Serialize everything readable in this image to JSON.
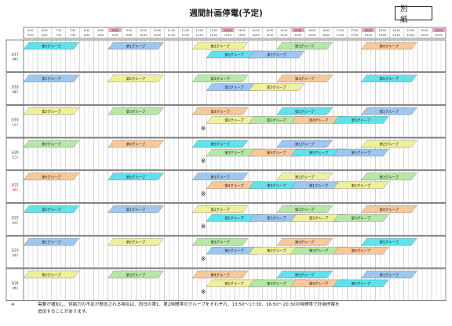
{
  "title": "週間計画停電(予定)",
  "annex_label": "別 紙",
  "times": [
    "6:20",
    "6:50",
    "7:20",
    "7:50",
    "8:20",
    "8:50",
    "9:20",
    "9:50",
    "10:20",
    "10:50",
    "11:20",
    "11:50",
    "12:20",
    "12:50",
    "13:20",
    "13:50",
    "14:20",
    "14:50",
    "15:20",
    "15:50",
    "16:20",
    "16:50",
    "17:20",
    "17:50",
    "18:20",
    "18:50",
    "19:20",
    "19:50",
    "20:20",
    "20:50"
  ],
  "highlight_times": [
    "9:20",
    "13:20",
    "15:50",
    "18:20",
    "20:50"
  ],
  "group_names": {
    "1": "第1グループ",
    "2": "第2グループ",
    "3": "第3グループ",
    "4": "第4グループ",
    "5": "第5グループ"
  },
  "colors": {
    "1": "#9ec7f0",
    "2": "#f0ef9c",
    "3": "#b5e8a6",
    "4": "#f7c89a",
    "5": "#5ee3ec",
    "text": "#222222",
    "border": "#333333",
    "highlight": "#e6a0c4"
  },
  "mark_symbol": "※",
  "days": [
    {
      "date": "3/17",
      "dow": "(木)",
      "dow_color": "#222222",
      "top": [
        5,
        1,
        2,
        3,
        4
      ],
      "bottom": [
        5,
        1
      ],
      "bottom_start": 2,
      "mark": false
    },
    {
      "date": "3/18",
      "dow": "(金)",
      "dow_color": "#222222",
      "top": [
        1,
        2,
        3,
        4,
        5
      ],
      "bottom": [
        1,
        2
      ],
      "bottom_start": 2,
      "mark": false
    },
    {
      "date": "3/19",
      "dow": "(土)",
      "dow_color": "#2a5ecb",
      "top": [
        2,
        3,
        4,
        5,
        1
      ],
      "bottom": [
        2,
        3,
        4,
        5
      ],
      "bottom_start": 2,
      "mark": true
    },
    {
      "date": "3/20",
      "dow": "(日)",
      "dow_color": "#d02828",
      "top": [
        3,
        4,
        5,
        1,
        2
      ],
      "bottom": [
        3,
        4,
        5,
        1
      ],
      "bottom_start": 2,
      "mark": true
    },
    {
      "date": "3/21",
      "dow": "(祝)",
      "dow_color": "#d02828",
      "top": [
        4,
        5,
        1,
        2,
        3
      ],
      "bottom": [
        4,
        5,
        1,
        2
      ],
      "bottom_start": 2,
      "mark": true
    },
    {
      "date": "3/22",
      "dow": "(火)",
      "dow_color": "#222222",
      "top": [
        5,
        1,
        2,
        3,
        4
      ],
      "bottom": [
        5,
        1,
        2,
        3
      ],
      "bottom_start": 2,
      "mark": true
    },
    {
      "date": "3/23",
      "dow": "(水)",
      "dow_color": "#222222",
      "top": [
        1,
        2,
        3,
        4,
        5
      ],
      "bottom": [
        1,
        2,
        3,
        4
      ],
      "bottom_start": 2,
      "mark": true
    },
    {
      "date": "3/24",
      "dow": "(木)",
      "dow_color": "#222222",
      "top": [
        2,
        3,
        4,
        5,
        1
      ],
      "bottom": [
        2,
        3,
        4,
        5
      ],
      "bottom_start": 2,
      "mark": true
    }
  ],
  "footnote_mark": "※",
  "footnote_line1": "需要が増加し、供給力の不足が懸念される場合は、同日の第1、第2時間帯のグループをそれぞれ、13:50～17:30、16:50～20:30の時間帯で計画停電を",
  "footnote_line2": "追加することがあります。"
}
